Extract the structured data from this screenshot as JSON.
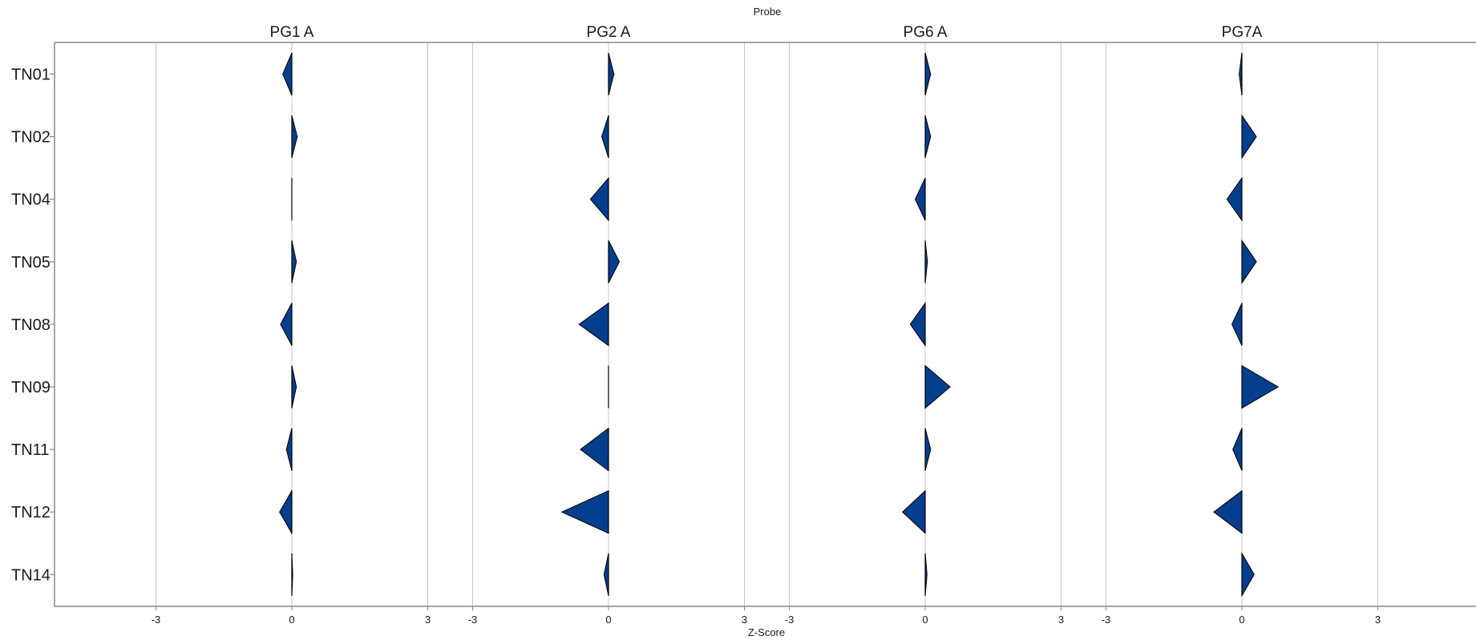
{
  "chart_data": {
    "type": "area",
    "title": "Probe",
    "xlabel": "Z-Score",
    "ylabel": "",
    "xlim": [
      -5.2,
      5.2
    ],
    "x_ticks": [
      -3,
      0,
      3
    ],
    "grid": true,
    "categories": [
      "TN01",
      "TN02",
      "TN04",
      "TN05",
      "TN08",
      "TN09",
      "TN11",
      "TN12",
      "TN14"
    ],
    "series": [
      {
        "name": "PG1 A",
        "values": [
          -0.2,
          0.12,
          0.0,
          0.1,
          -0.25,
          0.1,
          -0.12,
          -0.27,
          0.02
        ]
      },
      {
        "name": "PG2 A",
        "values": [
          0.12,
          -0.15,
          -0.4,
          0.24,
          -0.65,
          0.0,
          -0.62,
          -1.03,
          -0.1
        ]
      },
      {
        "name": "PG6 A",
        "values": [
          0.12,
          0.12,
          -0.22,
          0.05,
          -0.33,
          0.55,
          0.12,
          -0.5,
          0.04
        ]
      },
      {
        "name": "PG7A",
        "values": [
          -0.06,
          0.32,
          -0.33,
          0.32,
          -0.22,
          0.8,
          -0.2,
          -0.62,
          0.27
        ]
      }
    ],
    "fill_color": "#053e8c",
    "stroke_color": "#000000",
    "grid_color": "#c8c8c8",
    "frame_color": "#888888"
  }
}
